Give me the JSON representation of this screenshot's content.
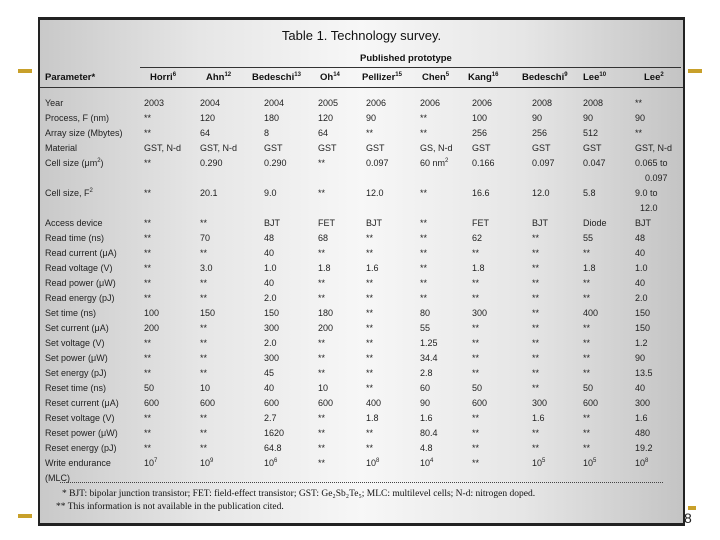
{
  "table": {
    "title": "Table 1. Technology survey.",
    "group_header": "Published prototype",
    "param_header": "Parameter*",
    "columns": [
      {
        "name": "Horri",
        "ref": "6"
      },
      {
        "name": "Ahn",
        "ref": "12"
      },
      {
        "name": "Bedeschi",
        "ref": "13"
      },
      {
        "name": "Oh",
        "ref": "14"
      },
      {
        "name": "Pellizer",
        "ref": "15"
      },
      {
        "name": "Chen",
        "ref": "5"
      },
      {
        "name": "Kang",
        "ref": "16"
      },
      {
        "name": "Bedeschi",
        "ref": "9"
      },
      {
        "name": "Lee",
        "ref": "10"
      },
      {
        "name": "Lee",
        "ref": "2"
      }
    ],
    "rows": [
      {
        "param": "Year",
        "values": [
          "2003",
          "2004",
          "2004",
          "2005",
          "2006",
          "2006",
          "2006",
          "2008",
          "2008",
          "**"
        ]
      },
      {
        "param": "Process, F (nm)",
        "values": [
          "**",
          "120",
          "180",
          "120",
          "90",
          "**",
          "100",
          "90",
          "90",
          "90"
        ]
      },
      {
        "param": "Array size (Mbytes)",
        "values": [
          "**",
          "64",
          "8",
          "64",
          "**",
          "**",
          "256",
          "256",
          "512",
          "**"
        ]
      },
      {
        "param": "Material",
        "values": [
          "GST, N-d",
          "GST, N-d",
          "GST",
          "GST",
          "GST",
          "GS, N-d",
          "GST",
          "GST",
          "GST",
          "GST, N-d"
        ]
      },
      {
        "param": "Cell size (μm^2)",
        "values": [
          "**",
          "0.290",
          "0.290",
          "**",
          "0.097",
          "60 nm^2",
          "0.166",
          "0.097",
          "0.047",
          "0.065 to\n0.097"
        ]
      },
      {
        "param": "Cell size, F^2",
        "values": [
          "**",
          "20.1",
          "9.0",
          "**",
          "12.0",
          "**",
          "16.6",
          "12.0",
          "5.8",
          "9.0 to\n12.0"
        ]
      },
      {
        "param": "Access device",
        "values": [
          "**",
          "**",
          "BJT",
          "FET",
          "BJT",
          "**",
          "FET",
          "BJT",
          "Diode",
          "BJT"
        ]
      },
      {
        "param": "Read time (ns)",
        "values": [
          "**",
          "70",
          "48",
          "68",
          "**",
          "**",
          "62",
          "**",
          "55",
          "48"
        ]
      },
      {
        "param": "Read current (μA)",
        "values": [
          "**",
          "**",
          "40",
          "**",
          "**",
          "**",
          "**",
          "**",
          "**",
          "40"
        ]
      },
      {
        "param": "Read voltage (V)",
        "values": [
          "**",
          "3.0",
          "1.0",
          "1.8",
          "1.6",
          "**",
          "1.8",
          "**",
          "1.8",
          "1.0"
        ]
      },
      {
        "param": "Read power (μW)",
        "values": [
          "**",
          "**",
          "40",
          "**",
          "**",
          "**",
          "**",
          "**",
          "**",
          "40"
        ]
      },
      {
        "param": "Read energy (pJ)",
        "values": [
          "**",
          "**",
          "2.0",
          "**",
          "**",
          "**",
          "**",
          "**",
          "**",
          "2.0"
        ]
      },
      {
        "param": "Set time (ns)",
        "values": [
          "100",
          "150",
          "150",
          "180",
          "**",
          "80",
          "300",
          "**",
          "400",
          "150"
        ]
      },
      {
        "param": "Set current (μA)",
        "values": [
          "200",
          "**",
          "300",
          "200",
          "**",
          "55",
          "**",
          "**",
          "**",
          "150"
        ]
      },
      {
        "param": "Set voltage (V)",
        "values": [
          "**",
          "**",
          "2.0",
          "**",
          "**",
          "1.25",
          "**",
          "**",
          "**",
          "1.2"
        ]
      },
      {
        "param": "Set power (μW)",
        "values": [
          "**",
          "**",
          "300",
          "**",
          "**",
          "34.4",
          "**",
          "**",
          "**",
          "90"
        ]
      },
      {
        "param": "Set energy (pJ)",
        "values": [
          "**",
          "**",
          "45",
          "**",
          "**",
          "2.8",
          "**",
          "**",
          "**",
          "13.5"
        ]
      },
      {
        "param": "Reset time (ns)",
        "values": [
          "50",
          "10",
          "40",
          "10",
          "**",
          "60",
          "50",
          "**",
          "50",
          "40"
        ]
      },
      {
        "param": "Reset current (μA)",
        "values": [
          "600",
          "600",
          "600",
          "600",
          "400",
          "90",
          "600",
          "300",
          "600",
          "300"
        ]
      },
      {
        "param": "Reset voltage (V)",
        "values": [
          "**",
          "**",
          "2.7",
          "**",
          "1.8",
          "1.6",
          "**",
          "1.6",
          "**",
          "1.6"
        ]
      },
      {
        "param": "Reset power (μW)",
        "values": [
          "**",
          "**",
          "1620",
          "**",
          "**",
          "80.4",
          "**",
          "**",
          "**",
          "480"
        ]
      },
      {
        "param": "Reset energy (pJ)",
        "values": [
          "**",
          "**",
          "64.8",
          "**",
          "**",
          "4.8",
          "**",
          "**",
          "**",
          "19.2"
        ]
      },
      {
        "param": "Write endurance\n   (MLC)",
        "values": [
          "10^7",
          "10^9",
          "10^6",
          "**",
          "10^8",
          "10^4",
          "**",
          "10^5",
          "10^5",
          "10^8"
        ]
      }
    ],
    "footnotes": [
      "* BJT: bipolar junction transistor; FET: field-effect transistor; GST: Ge₂Sb₂Te₅; MLC: multilevel cells; N-d: nitrogen doped.",
      "** This information is not available in the publication cited."
    ]
  },
  "slide": {
    "page_number": "8",
    "accent_color": "#c8a02a"
  }
}
